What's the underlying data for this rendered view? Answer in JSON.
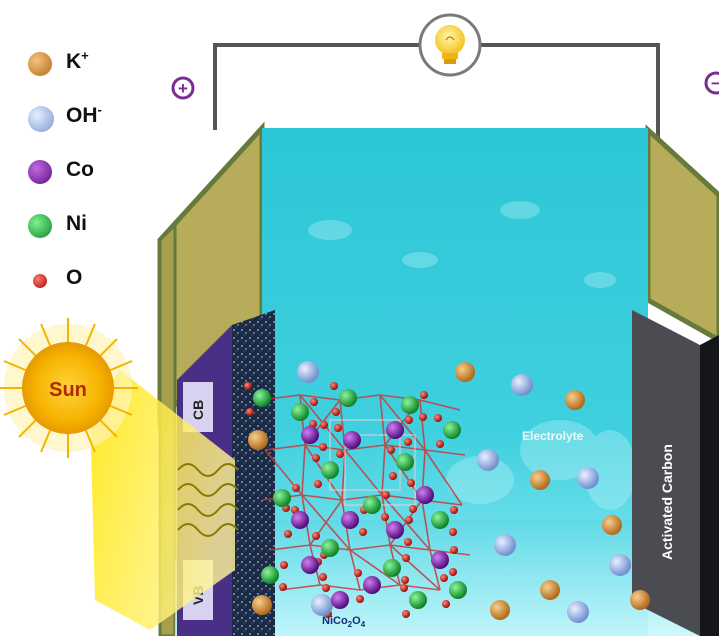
{
  "legend": [
    {
      "base": "K",
      "sup": "+",
      "color": "#c8842c",
      "icon": "potassium-ion-sphere"
    },
    {
      "base": "OH",
      "sup": "-",
      "color": "#9bb6e4",
      "icon": "hydroxide-ion-sphere"
    },
    {
      "base": "Co",
      "sup": "",
      "color": "#7b1fa2",
      "icon": "cobalt-atom-sphere"
    },
    {
      "base": "Ni",
      "sup": "",
      "color": "#1eb33c",
      "icon": "nickel-atom-sphere"
    },
    {
      "base": "O",
      "sup": "",
      "color": "#c81818",
      "icon": "oxygen-atom-sphere"
    }
  ],
  "terminals": {
    "positive": "+",
    "negative": "−"
  },
  "sun_label": "Sun",
  "band_labels": {
    "conduction": "CB",
    "valence": "VB"
  },
  "electrolyte_label": "Electrolyte",
  "counter_electrode_label": "Activated Carbon",
  "material_label": {
    "prefix": "NiCo",
    "sub1": "2",
    "mid": "O",
    "sub2": "4"
  },
  "colors": {
    "casing": "#b8ad5c",
    "casing_edge": "#6d8044",
    "electrolyte_top": "#2bc9d8",
    "electrolyte_bottom": "#7be6ef",
    "wire": "#555555",
    "sun": "#f5b400",
    "terminal_symbol": "#7b2c90"
  }
}
